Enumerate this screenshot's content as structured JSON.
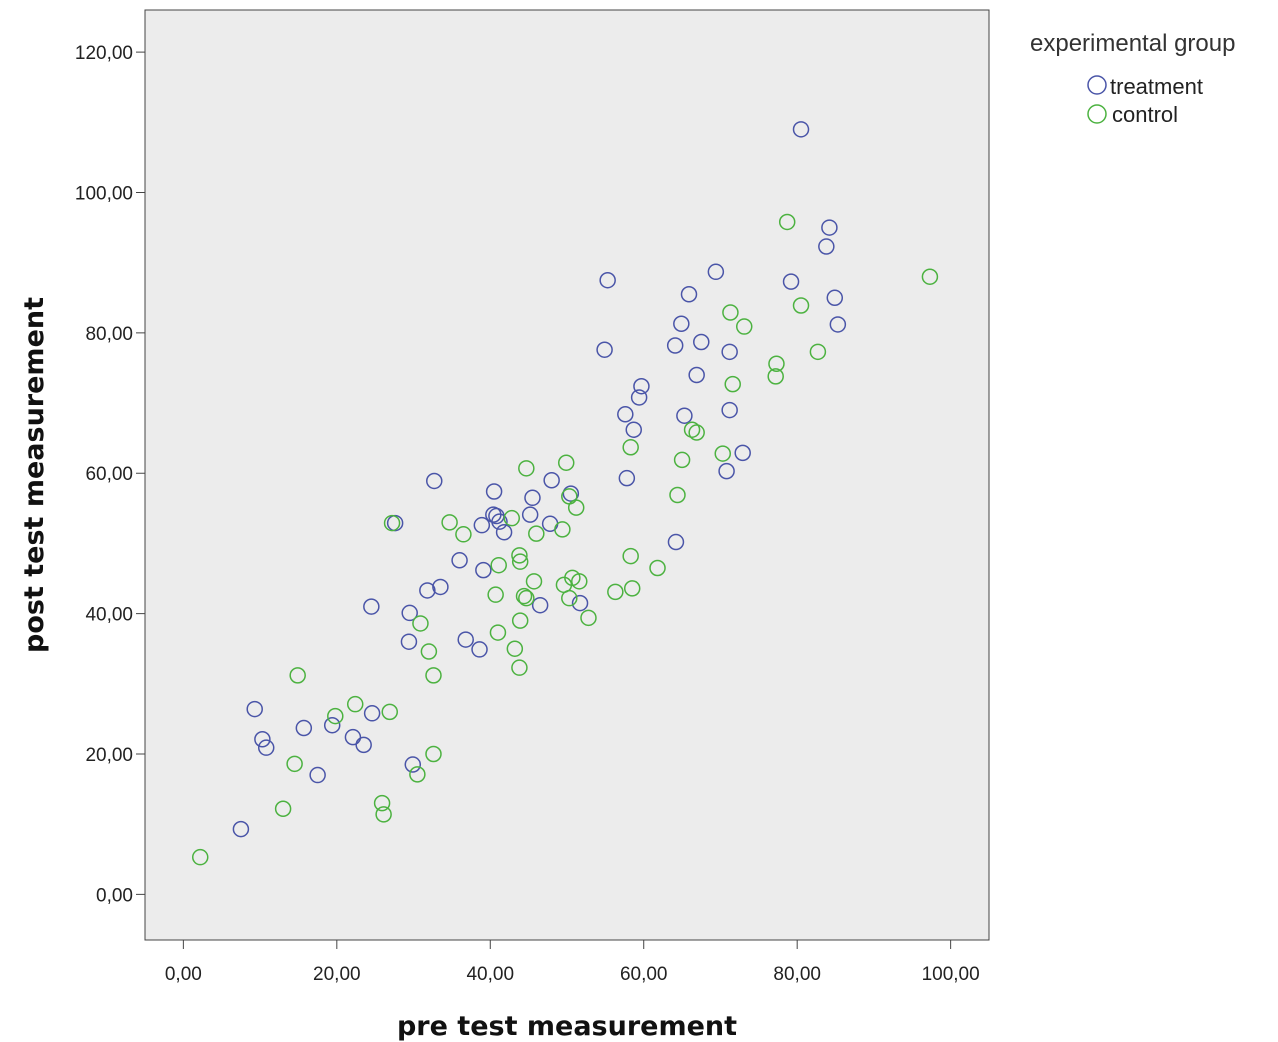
{
  "chart_data": {
    "type": "scatter",
    "xlabel": "pre test measurement",
    "ylabel": "post test measurement",
    "xlim": [
      -5,
      105
    ],
    "ylim": [
      -6.5,
      126
    ],
    "x_ticks": [
      0,
      20,
      40,
      60,
      80,
      100
    ],
    "x_tick_labels": [
      "0,00",
      "20,00",
      "40,00",
      "60,00",
      "80,00",
      "100,00"
    ],
    "y_ticks": [
      0,
      20,
      40,
      60,
      80,
      100,
      120
    ],
    "y_tick_labels": [
      "0,00",
      "20,00",
      "40,00",
      "60,00",
      "80,00",
      "100,00",
      "120,00"
    ],
    "grid": false,
    "background": "#ececec",
    "legend": {
      "title": "experimental group",
      "placement": "right-top"
    },
    "series": [
      {
        "name": "treatment",
        "color": "#4a55a8",
        "marker": "open-circle",
        "points": [
          [
            80.5,
            109
          ],
          [
            84.2,
            95.0
          ],
          [
            83.8,
            92.3
          ],
          [
            79.2,
            87.3
          ],
          [
            84.9,
            85.0
          ],
          [
            85.3,
            81.2
          ],
          [
            69.4,
            88.7
          ],
          [
            55.3,
            87.5
          ],
          [
            65.9,
            85.5
          ],
          [
            64.9,
            81.3
          ],
          [
            64.1,
            78.2
          ],
          [
            67.5,
            78.7
          ],
          [
            71.2,
            77.3
          ],
          [
            54.9,
            77.6
          ],
          [
            59.7,
            72.4
          ],
          [
            59.4,
            70.8
          ],
          [
            66.9,
            74.0
          ],
          [
            71.2,
            69.0
          ],
          [
            57.6,
            68.4
          ],
          [
            65.3,
            68.2
          ],
          [
            58.7,
            66.2
          ],
          [
            72.9,
            62.9
          ],
          [
            70.8,
            60.3
          ],
          [
            57.8,
            59.3
          ],
          [
            64.2,
            50.2
          ],
          [
            32.7,
            58.9
          ],
          [
            48.0,
            59.0
          ],
          [
            40.5,
            57.4
          ],
          [
            45.5,
            56.5
          ],
          [
            50.5,
            57.1
          ],
          [
            40.4,
            54.1
          ],
          [
            40.8,
            53.9
          ],
          [
            45.2,
            54.1
          ],
          [
            41.2,
            53.1
          ],
          [
            38.9,
            52.6
          ],
          [
            47.8,
            52.8
          ],
          [
            41.8,
            51.6
          ],
          [
            27.6,
            52.9
          ],
          [
            36.0,
            47.6
          ],
          [
            39.1,
            46.2
          ],
          [
            31.8,
            43.3
          ],
          [
            33.5,
            43.8
          ],
          [
            24.5,
            41.0
          ],
          [
            46.5,
            41.2
          ],
          [
            51.7,
            41.5
          ],
          [
            29.5,
            40.1
          ],
          [
            29.4,
            36.0
          ],
          [
            36.8,
            36.3
          ],
          [
            38.6,
            34.9
          ],
          [
            9.3,
            26.4
          ],
          [
            24.6,
            25.8
          ],
          [
            15.7,
            23.7
          ],
          [
            19.4,
            24.1
          ],
          [
            10.3,
            22.1
          ],
          [
            22.1,
            22.4
          ],
          [
            10.8,
            20.9
          ],
          [
            23.5,
            21.3
          ],
          [
            29.9,
            18.5
          ],
          [
            17.5,
            17.0
          ],
          [
            7.5,
            9.3
          ]
        ]
      },
      {
        "name": "control",
        "color": "#4cb240",
        "marker": "open-circle",
        "points": [
          [
            97.3,
            88.0
          ],
          [
            78.7,
            95.8
          ],
          [
            80.5,
            83.9
          ],
          [
            71.3,
            82.9
          ],
          [
            73.1,
            80.9
          ],
          [
            82.7,
            77.3
          ],
          [
            77.3,
            75.6
          ],
          [
            77.2,
            73.8
          ],
          [
            71.6,
            72.7
          ],
          [
            66.3,
            66.2
          ],
          [
            66.9,
            65.8
          ],
          [
            58.3,
            63.7
          ],
          [
            70.3,
            62.8
          ],
          [
            65.0,
            61.9
          ],
          [
            49.9,
            61.5
          ],
          [
            44.7,
            60.7
          ],
          [
            64.4,
            56.9
          ],
          [
            50.3,
            56.7
          ],
          [
            51.2,
            55.1
          ],
          [
            49.4,
            52.0
          ],
          [
            46.0,
            51.4
          ],
          [
            34.7,
            53.0
          ],
          [
            36.5,
            51.3
          ],
          [
            42.8,
            53.6
          ],
          [
            27.2,
            52.9
          ],
          [
            43.8,
            48.3
          ],
          [
            43.9,
            47.4
          ],
          [
            41.1,
            46.9
          ],
          [
            58.3,
            48.2
          ],
          [
            61.8,
            46.5
          ],
          [
            49.6,
            44.1
          ],
          [
            50.7,
            45.1
          ],
          [
            51.6,
            44.6
          ],
          [
            45.7,
            44.6
          ],
          [
            40.7,
            42.7
          ],
          [
            44.4,
            42.5
          ],
          [
            44.7,
            42.2
          ],
          [
            56.3,
            43.1
          ],
          [
            58.5,
            43.6
          ],
          [
            50.3,
            42.2
          ],
          [
            52.8,
            39.4
          ],
          [
            43.9,
            39.0
          ],
          [
            30.9,
            38.6
          ],
          [
            41.0,
            37.3
          ],
          [
            43.2,
            35.0
          ],
          [
            32.0,
            34.6
          ],
          [
            43.8,
            32.3
          ],
          [
            32.6,
            31.2
          ],
          [
            14.9,
            31.2
          ],
          [
            22.4,
            27.1
          ],
          [
            19.8,
            25.4
          ],
          [
            26.9,
            26.0
          ],
          [
            14.5,
            18.6
          ],
          [
            32.6,
            20.0
          ],
          [
            30.5,
            17.1
          ],
          [
            13.0,
            12.2
          ],
          [
            25.9,
            13.0
          ],
          [
            26.1,
            11.4
          ],
          [
            2.2,
            5.3
          ]
        ]
      }
    ]
  }
}
